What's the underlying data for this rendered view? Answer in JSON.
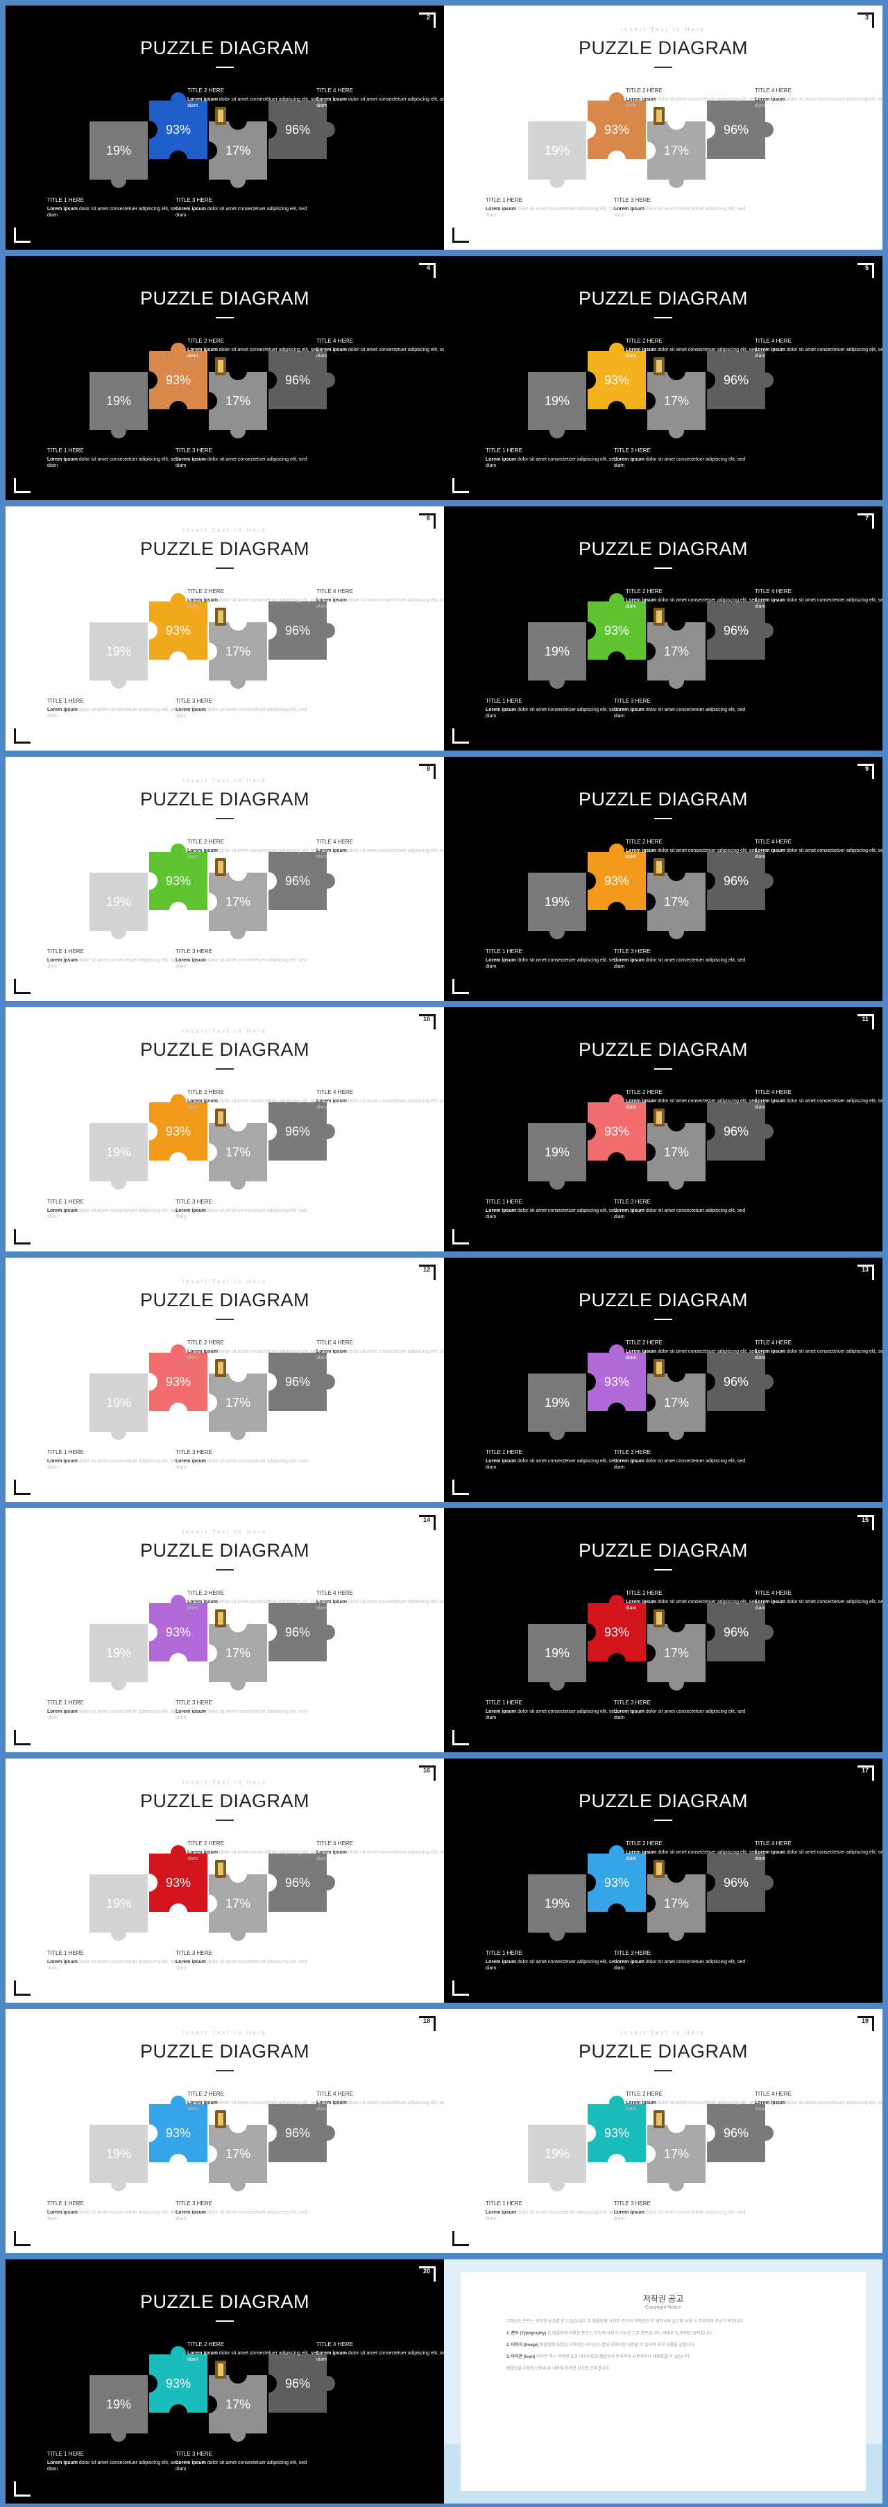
{
  "deck": {
    "title": "PUZZLE DIAGRAM",
    "subtitle": "Insert Text In Here",
    "percents": [
      "19%",
      "93%",
      "17%",
      "96%"
    ],
    "labels": {
      "t1": "TITLE 1 HERE",
      "t2": "TITLE 2 HERE",
      "t3": "TITLE 3 HERE",
      "t4": "TITLE 4 HERE",
      "lead": "Lorem ipsum",
      "text": "dolor sit amet consectetuer adipiscing elit, sed diam"
    }
  },
  "slides": [
    {
      "number": "2",
      "theme": "dark",
      "accent": "#1f5fcc"
    },
    {
      "number": "3",
      "theme": "light",
      "accent": "#d9874a"
    },
    {
      "number": "4",
      "theme": "dark",
      "accent": "#d9874a"
    },
    {
      "number": "5",
      "theme": "dark",
      "accent": "#f2b01a"
    },
    {
      "number": "6",
      "theme": "light",
      "accent": "#f2a81c"
    },
    {
      "number": "7",
      "theme": "dark",
      "accent": "#5ec530"
    },
    {
      "number": "8",
      "theme": "light",
      "accent": "#5ec530"
    },
    {
      "number": "9",
      "theme": "dark",
      "accent": "#f39a1a"
    },
    {
      "number": "10",
      "theme": "light",
      "accent": "#f39a1a"
    },
    {
      "number": "11",
      "theme": "dark",
      "accent": "#f26d6d"
    },
    {
      "number": "12",
      "theme": "light",
      "accent": "#f26d6d"
    },
    {
      "number": "13",
      "theme": "dark",
      "accent": "#b36ad9"
    },
    {
      "number": "14",
      "theme": "light",
      "accent": "#b36ad9"
    },
    {
      "number": "15",
      "theme": "dark",
      "accent": "#d4141c"
    },
    {
      "number": "16",
      "theme": "light",
      "accent": "#d4141c"
    },
    {
      "number": "17",
      "theme": "dark",
      "accent": "#36a4e8"
    },
    {
      "number": "18",
      "theme": "light",
      "accent": "#36a4e8"
    },
    {
      "number": "19",
      "theme": "light",
      "accent": "#1bbcbc"
    },
    {
      "number": "20",
      "theme": "dark",
      "accent": "#1bbcbc"
    }
  ],
  "notice": {
    "title": "저작권 공고",
    "subtitle": "Copyright Notice",
    "intro": "고해상도 폰트는 저작권 보호를 받고 있습니다. 본 템플릿에 사용된 폰트의 저작권은 각 제작사에 있으며 사용 시 주의하여 주시기 바랍니다.",
    "items": [
      {
        "head": "1. 폰트 (Typography)",
        "text": "본 템플릿에 사용된 폰트는 상업적 사용이 가능한 무료 폰트입니다. 재배포 및 판매는 금지됩니다."
      },
      {
        "head": "2. 이미지 (Image)",
        "text": "템플릿에 포함된 이미지는 라이선스 범위 내에서만 사용할 수 있으며 외부 유출을 금합니다."
      },
      {
        "head": "3. 아이콘 (Icon)",
        "text": "아이콘 역시 저작권 보호 대상이므로 템플릿과 분리하여 사용하거나 재배포할 수 없습니다."
      }
    ],
    "footer": "템플릿을 사용함으로써 위 내용에 동의한 것으로 간주합니다."
  }
}
